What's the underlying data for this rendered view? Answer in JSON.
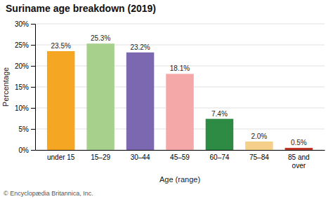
{
  "chart_data": {
    "type": "bar",
    "title": "Suriname age breakdown (2019)",
    "categories": [
      "under 15",
      "15–29",
      "30–44",
      "45–59",
      "60–74",
      "75–84",
      "85 and\nover"
    ],
    "values": [
      23.5,
      25.3,
      23.2,
      18.1,
      7.4,
      2.0,
      0.5
    ],
    "value_labels": [
      "23.5%",
      "25.3%",
      "23.2%",
      "18.1%",
      "7.4%",
      "2.0%",
      "0.5%"
    ],
    "data_labels": true,
    "colors": [
      "#f5a623",
      "#a8d08d",
      "#7b68b0",
      "#f4a9a8",
      "#2e8b44",
      "#f5d08a",
      "#c0392b"
    ],
    "xlabel": "Age (range)",
    "ylabel": "Percentage",
    "ylim": [
      0,
      30
    ],
    "yticks": [
      {
        "value": 0,
        "label": "0%"
      },
      {
        "value": 5,
        "label": "5%"
      },
      {
        "value": 10,
        "label": "10%"
      },
      {
        "value": 15,
        "label": "15%"
      },
      {
        "value": 20,
        "label": "20%"
      },
      {
        "value": 25,
        "label": "25%"
      },
      {
        "value": 30,
        "label": "30%"
      }
    ],
    "grid": true,
    "annotations": [
      "© Encyclopædia Britannica, Inc."
    ]
  }
}
